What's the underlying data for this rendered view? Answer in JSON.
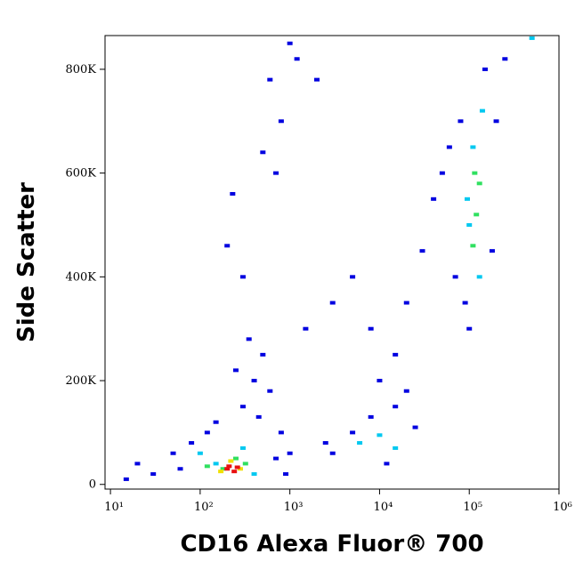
{
  "chart_data": {
    "type": "scatter",
    "x_label": "CD16 Alexa Fluor® 700",
    "y_label": "Side Scatter",
    "xscale": "log",
    "xlim": [
      8.7,
      1000000
    ],
    "ylim": [
      -9000,
      865000
    ],
    "xticks": [
      {
        "value": 10,
        "label": "10¹"
      },
      {
        "value": 100,
        "label": "10²"
      },
      {
        "value": 1000,
        "label": "10³"
      },
      {
        "value": 10000,
        "label": "10⁴"
      },
      {
        "value": 100000,
        "label": "10⁵"
      },
      {
        "value": 1000000,
        "label": "10⁶"
      }
    ],
    "yticks": [
      0,
      {
        "value": 200000,
        "label": "200K"
      },
      {
        "value": 400000,
        "label": "400K"
      },
      {
        "value": 600000,
        "label": "600K"
      },
      {
        "value": 800000,
        "label": "800K"
      }
    ],
    "series": [
      {
        "color": "#0000e0",
        "x": [
          30,
          50,
          80,
          120,
          150,
          300,
          400,
          500,
          350,
          600,
          800,
          1000,
          20,
          15,
          60,
          900,
          250,
          450,
          700,
          600,
          800,
          1000,
          500,
          700,
          1200,
          2000,
          3000,
          5000,
          8000,
          20000,
          30000,
          50000,
          40000,
          15000,
          10000,
          1500,
          300,
          200,
          230,
          3000,
          5000,
          8000,
          15000,
          20000,
          25000,
          2500,
          12000,
          70000,
          80000,
          90000,
          150000,
          200000,
          180000,
          100000,
          250000,
          60000
        ],
        "y": [
          20000,
          60000,
          80000,
          100000,
          120000,
          150000,
          200000,
          250000,
          280000,
          180000,
          100000,
          60000,
          40000,
          10000,
          30000,
          20000,
          220000,
          130000,
          50000,
          780000,
          700000,
          850000,
          640000,
          600000,
          820000,
          780000,
          350000,
          400000,
          300000,
          350000,
          450000,
          600000,
          550000,
          250000,
          200000,
          300000,
          400000,
          460000,
          560000,
          60000,
          100000,
          130000,
          150000,
          180000,
          110000,
          80000,
          40000,
          400000,
          700000,
          350000,
          800000,
          700000,
          450000,
          300000,
          820000,
          650000
        ]
      },
      {
        "color": "#00c8f0",
        "x": [
          150,
          100,
          300,
          400,
          6000,
          10000,
          15000,
          110000,
          130000,
          100000,
          140000,
          95000,
          500000
        ],
        "y": [
          40000,
          60000,
          70000,
          20000,
          80000,
          95000,
          70000,
          650000,
          400000,
          500000,
          720000,
          550000,
          860000
        ]
      },
      {
        "color": "#30e060",
        "x": [
          180,
          250,
          120,
          320,
          120000,
          130000,
          110000,
          115000
        ],
        "y": [
          30000,
          50000,
          35000,
          40000,
          520000,
          580000,
          460000,
          600000
        ]
      },
      {
        "color": "#f0e000",
        "x": [
          170,
          280,
          220
        ],
        "y": [
          25000,
          30000,
          45000
        ]
      },
      {
        "color": "#e81010",
        "x": [
          200,
          240,
          210,
          260
        ],
        "y": [
          30000,
          25000,
          35000,
          33000
        ]
      }
    ]
  }
}
